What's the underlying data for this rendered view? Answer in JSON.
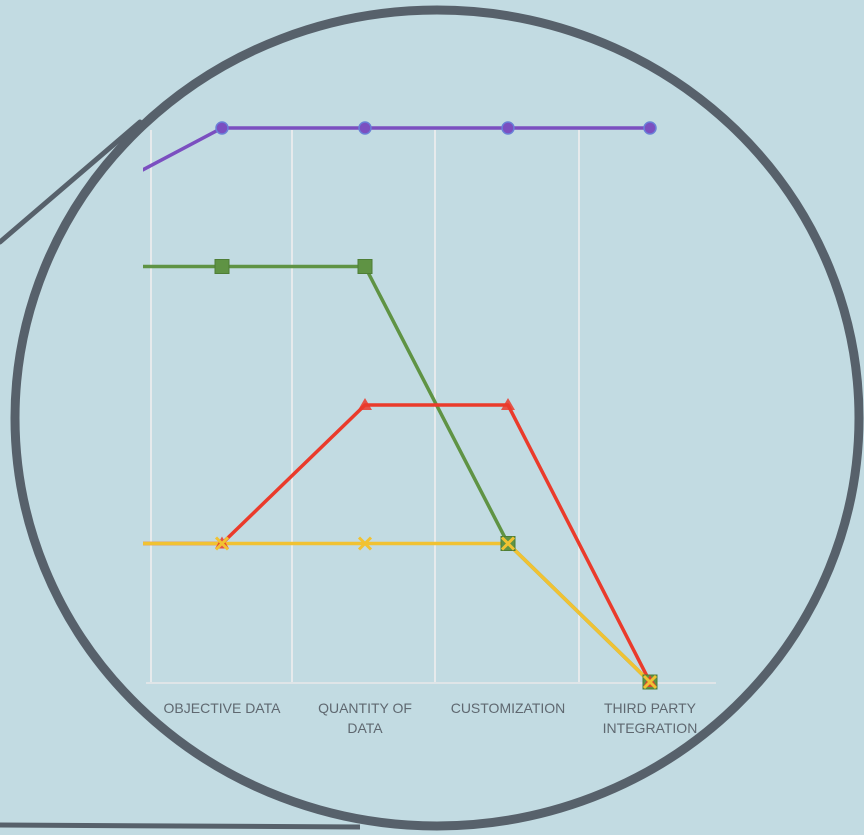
{
  "chart_data": {
    "type": "line",
    "categories": [
      "",
      "OBJECTIVE DATA",
      "QUANTITY OF DATA",
      "CUSTOMIZATION",
      "THIRD PARTY INTEGRATION"
    ],
    "category_labels": [
      [],
      [
        "OBJECTIVE DATA"
      ],
      [
        "QUANTITY OF",
        "DATA"
      ],
      [
        "CUSTOMIZATION"
      ],
      [
        "THIRD PARTY",
        "INTEGRATION"
      ]
    ],
    "ylim": [
      0,
      4
    ],
    "grid": "vertical",
    "series": [
      {
        "color": "#7b4fc0",
        "marker": "circle",
        "values": [
          3.45,
          4,
          4,
          4,
          4
        ]
      },
      {
        "color": "#5f9344",
        "marker": "square",
        "values": [
          3,
          3,
          3,
          1,
          0
        ]
      },
      {
        "color": "#ea3b2b",
        "marker": "triangle",
        "values": [
          1,
          1,
          2,
          2,
          0
        ]
      },
      {
        "color": "#f1c232",
        "marker": "cross",
        "values": [
          1,
          1,
          1,
          1,
          0
        ]
      }
    ]
  },
  "colors": {
    "background": "#c2dbe2",
    "lens_border": "#57616b",
    "gridline": "#e6eaec",
    "axis": "#dfe5e8"
  }
}
